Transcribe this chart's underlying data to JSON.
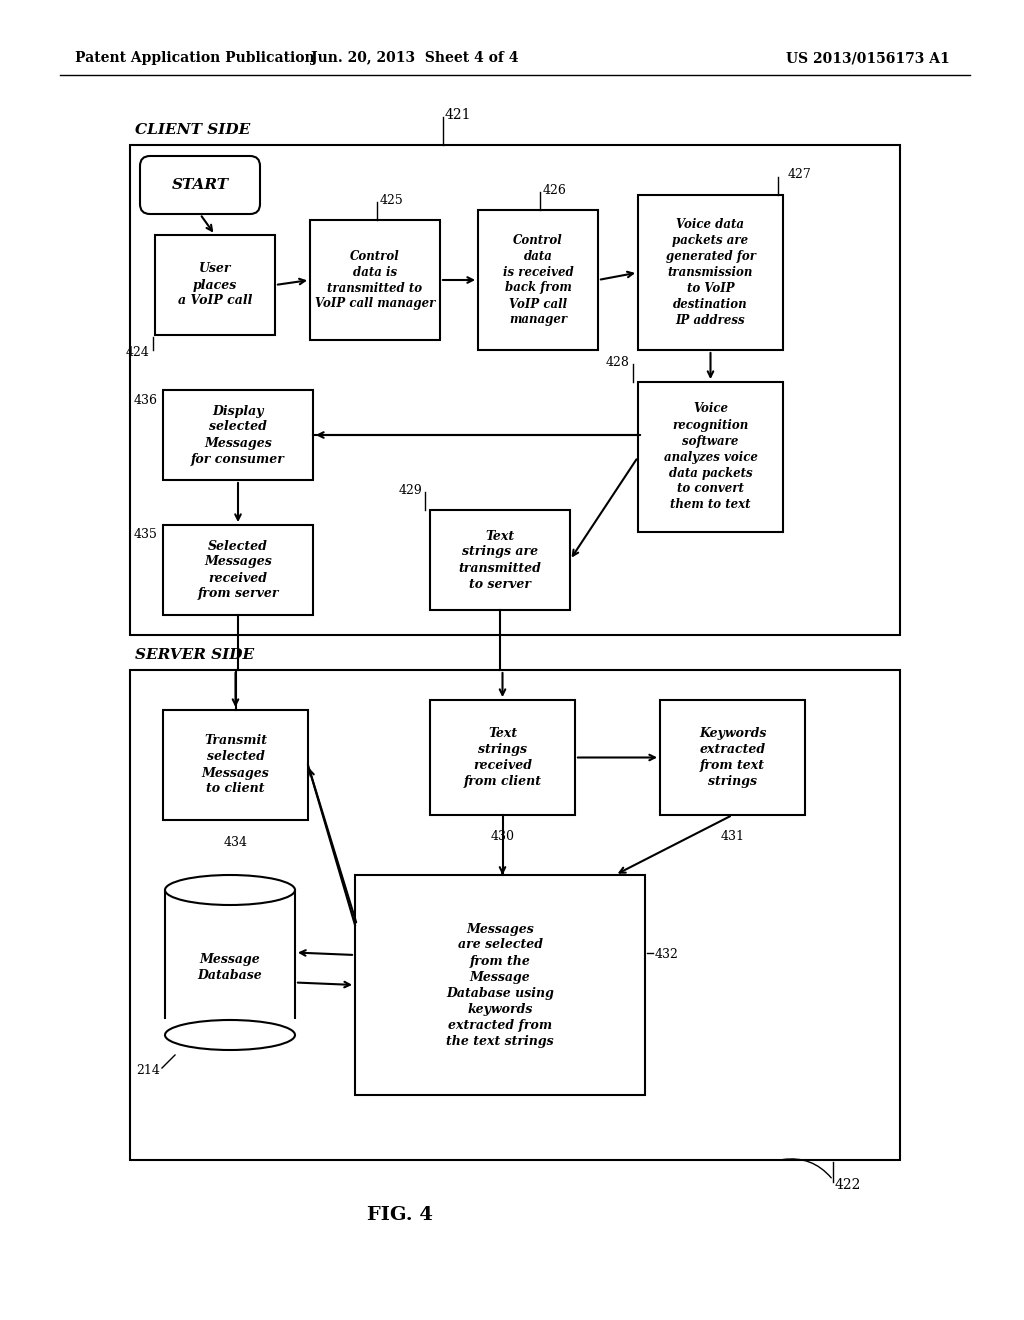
{
  "header_left": "Patent Application Publication",
  "header_mid": "Jun. 20, 2013  Sheet 4 of 4",
  "header_right": "US 2013/0156173 A1",
  "fig_label": "FIG. 4",
  "bg_color": "#ffffff",
  "text_color": "#000000",
  "ref_421": "421",
  "ref_422": "422",
  "ref_424": "424",
  "ref_425": "425",
  "ref_426": "426",
  "ref_427": "427",
  "ref_428": "428",
  "ref_429": "429",
  "ref_430": "430",
  "ref_431": "431",
  "ref_432": "432",
  "ref_434": "434",
  "ref_435": "435",
  "ref_436": "436",
  "ref_214": "214",
  "client_label": "CLIENT SIDE",
  "server_label": "SERVER SIDE"
}
